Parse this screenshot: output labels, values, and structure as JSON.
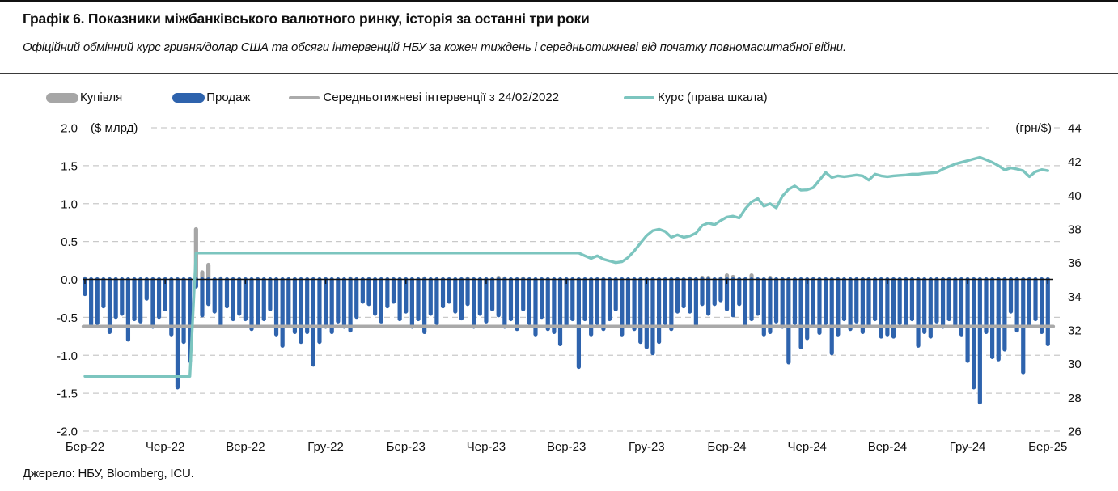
{
  "header": {
    "title": "Графік 6. Показники міжбанківського валютного ринку, історія за останні три роки",
    "subtitle": "Офіційний обмінний курс гривня/долар США та обсяги інтервенцій НБУ за кожен тиждень і середньотижневі від початку повномасштабної війни."
  },
  "legend": {
    "items": [
      {
        "label": "Купівля",
        "type": "bar",
        "color": "#a6a6a6"
      },
      {
        "label": "Продаж",
        "type": "bar",
        "color": "#2e63ad"
      },
      {
        "label": "Середньотижневі інтервенції з 24/02/2022",
        "type": "line",
        "color": "#ababab"
      },
      {
        "label": "Курс (права шкала)",
        "type": "line",
        "color": "#7cc5bf"
      }
    ]
  },
  "source": "Джерело: НБУ, Bloomberg, ICU.",
  "chart_data": {
    "type": "bar",
    "title": "Показники міжбанківського валютного ринку",
    "left_axis": {
      "label": "($ млрд)",
      "min": -2,
      "max": 2,
      "ticks": [
        "2.0",
        "1.5",
        "1.0",
        "0.5",
        "0.0",
        "-0.5",
        "-1.0",
        "-1.5",
        "-2.0"
      ]
    },
    "right_axis": {
      "label": "(грн/$)",
      "min": 26,
      "max": 44,
      "ticks": [
        "44",
        "42",
        "40",
        "38",
        "36",
        "34",
        "32",
        "30",
        "28",
        "26"
      ]
    },
    "x_ticks": [
      "Бер-22",
      "Чер-22",
      "Вер-22",
      "Гру-22",
      "Бер-23",
      "Чер-23",
      "Вер-23",
      "Гру-23",
      "Бер-24",
      "Чер-24",
      "Вер-24",
      "Гру-24",
      "Бер-25"
    ],
    "weeks_per_tick": 13,
    "grid": true,
    "legend_position": "top",
    "colors": {
      "buy": "#a6a6a6",
      "sell": "#2e63ad",
      "avg_line": "#a9a9a9",
      "rate_line": "#7cc5bf",
      "grid": "#c9c9c9",
      "zero_axis": "#111111"
    },
    "avg_intervention_line": {
      "name": "Середньотижневі інтервенції з 24/02/2022",
      "value": -0.62
    },
    "series": [
      {
        "name": "Купівля",
        "type": "bar",
        "axis": "left",
        "values": [
          0.04,
          0,
          0,
          0,
          0,
          0.03,
          0,
          0,
          0,
          0,
          0,
          0,
          0,
          0.03,
          0,
          0,
          0,
          0,
          0.69,
          0.12,
          0.22,
          0,
          0.04,
          0,
          0,
          0,
          0,
          0,
          0.03,
          0,
          0,
          0,
          0,
          0,
          0.03,
          0,
          0,
          0,
          0,
          0.03,
          0,
          0,
          0,
          0.04,
          0,
          0,
          0.03,
          0,
          0,
          0,
          0,
          0.03,
          0,
          0,
          0,
          0.04,
          0,
          0,
          0.03,
          0,
          0,
          0,
          0.04,
          0,
          0,
          0.03,
          0,
          0.05,
          0.04,
          0,
          0,
          0.04,
          0,
          0,
          0,
          0.03,
          0,
          0,
          0,
          0,
          0,
          0,
          0,
          0,
          0.03,
          0,
          0,
          0,
          0,
          0,
          0,
          0,
          0,
          0,
          0,
          0,
          0.03,
          0,
          0.04,
          0,
          0.05,
          0.05,
          0,
          0.04,
          0.08,
          0.06,
          0,
          0.03,
          0.08,
          0,
          0,
          0.05,
          0,
          0,
          0,
          0,
          0,
          0,
          0.03,
          0,
          0,
          0,
          0,
          0,
          0,
          0,
          0.03,
          0,
          0,
          0,
          0,
          0,
          0,
          0,
          0,
          0,
          0,
          0,
          0,
          0,
          0,
          0,
          0,
          0,
          0,
          0,
          0,
          0,
          0,
          0,
          0,
          0,
          0,
          0,
          0,
          0,
          0
        ]
      },
      {
        "name": "Продаж",
        "type": "bar",
        "axis": "left",
        "values": [
          -0.22,
          -0.62,
          -0.6,
          -0.38,
          -0.72,
          -0.52,
          -0.48,
          -0.82,
          -0.55,
          -0.58,
          -0.28,
          -0.65,
          -0.52,
          -0.42,
          -0.75,
          -1.45,
          -0.85,
          -1.1,
          -0.12,
          -0.5,
          -0.35,
          -0.45,
          -0.62,
          -0.38,
          -0.55,
          -0.48,
          -0.55,
          -0.68,
          -0.62,
          -0.55,
          -0.42,
          -0.75,
          -0.9,
          -0.62,
          -0.72,
          -0.85,
          -0.72,
          -1.15,
          -0.85,
          -0.65,
          -0.72,
          -0.58,
          -0.65,
          -0.7,
          -0.52,
          -0.32,
          -0.35,
          -0.48,
          -0.58,
          -0.38,
          -0.32,
          -0.55,
          -0.45,
          -0.65,
          -0.55,
          -0.72,
          -0.48,
          -0.6,
          -0.38,
          -0.32,
          -0.45,
          -0.54,
          -0.35,
          -0.65,
          -0.48,
          -0.58,
          -0.42,
          -0.5,
          -0.65,
          -0.55,
          -0.68,
          -0.42,
          -0.6,
          -0.75,
          -0.52,
          -0.68,
          -0.72,
          -0.88,
          -0.62,
          -0.55,
          -1.18,
          -0.55,
          -0.75,
          -0.6,
          -0.68,
          -0.55,
          -0.42,
          -0.75,
          -0.62,
          -0.68,
          -0.85,
          -0.92,
          -1.0,
          -0.85,
          -0.6,
          -0.68,
          -0.45,
          -0.38,
          -0.45,
          -0.62,
          -0.35,
          -0.48,
          -0.35,
          -0.3,
          -0.42,
          -0.5,
          -0.35,
          -0.62,
          -0.55,
          -0.48,
          -0.75,
          -0.72,
          -0.58,
          -0.65,
          -1.12,
          -0.6,
          -0.92,
          -0.8,
          -0.62,
          -0.73,
          -0.6,
          -1.0,
          -0.75,
          -0.55,
          -0.68,
          -0.58,
          -0.72,
          -0.62,
          -0.55,
          -0.78,
          -0.75,
          -0.78,
          -0.6,
          -0.62,
          -0.55,
          -0.9,
          -0.72,
          -0.78,
          -0.58,
          -0.65,
          -0.55,
          -0.62,
          -0.75,
          -1.1,
          -1.45,
          -1.65,
          -0.72,
          -1.05,
          -1.08,
          -0.95,
          -0.45,
          -0.7,
          -1.25,
          -0.62,
          -0.55,
          -0.72,
          -0.88
        ]
      },
      {
        "name": "Курс (права шкала)",
        "type": "line",
        "axis": "right",
        "values": [
          29.25,
          29.25,
          29.25,
          29.25,
          29.25,
          29.25,
          29.25,
          29.25,
          29.25,
          29.25,
          29.25,
          29.25,
          29.25,
          29.25,
          29.25,
          29.25,
          29.25,
          29.25,
          36.57,
          36.57,
          36.57,
          36.57,
          36.57,
          36.57,
          36.57,
          36.57,
          36.57,
          36.57,
          36.57,
          36.57,
          36.57,
          36.57,
          36.57,
          36.57,
          36.57,
          36.57,
          36.57,
          36.57,
          36.57,
          36.57,
          36.57,
          36.57,
          36.57,
          36.57,
          36.57,
          36.57,
          36.57,
          36.57,
          36.57,
          36.57,
          36.57,
          36.57,
          36.57,
          36.57,
          36.57,
          36.57,
          36.57,
          36.57,
          36.57,
          36.57,
          36.57,
          36.57,
          36.57,
          36.57,
          36.57,
          36.57,
          36.57,
          36.57,
          36.57,
          36.57,
          36.57,
          36.57,
          36.57,
          36.57,
          36.57,
          36.57,
          36.57,
          36.57,
          36.57,
          36.57,
          36.57,
          36.4,
          36.25,
          36.4,
          36.2,
          36.1,
          36.0,
          36.05,
          36.3,
          36.7,
          37.15,
          37.6,
          37.9,
          37.98,
          37.85,
          37.5,
          37.65,
          37.5,
          37.58,
          37.75,
          38.2,
          38.35,
          38.25,
          38.5,
          38.7,
          38.76,
          38.65,
          39.2,
          39.6,
          39.8,
          39.35,
          39.5,
          39.25,
          39.95,
          40.35,
          40.55,
          40.3,
          40.32,
          40.45,
          40.9,
          41.35,
          41.05,
          41.15,
          41.1,
          41.15,
          41.2,
          41.15,
          40.9,
          41.25,
          41.15,
          41.1,
          41.15,
          41.18,
          41.2,
          41.25,
          41.25,
          41.3,
          41.32,
          41.35,
          41.55,
          41.7,
          41.85,
          41.95,
          42.05,
          42.15,
          42.25,
          42.1,
          41.95,
          41.75,
          41.5,
          41.62,
          41.55,
          41.45,
          41.1,
          41.4,
          41.52,
          41.45
        ]
      }
    ]
  }
}
